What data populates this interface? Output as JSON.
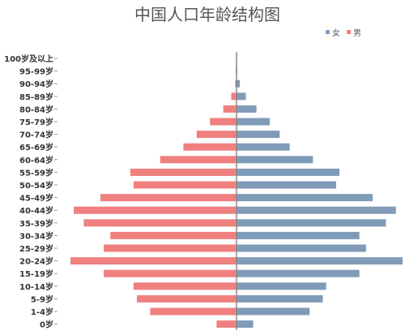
{
  "chart_data": {
    "type": "bar",
    "orientation": "horizontal-population-pyramid",
    "title": "中国人口年龄结构图",
    "legend": {
      "placement": "top-right"
    },
    "categories": [
      "100岁及以上",
      "95-99岁",
      "90-94岁",
      "85-89岁",
      "80-84岁",
      "75-79岁",
      "70-74岁",
      "65-69岁",
      "60-64岁",
      "55-59岁",
      "50-54岁",
      "45-49岁",
      "40-44岁",
      "35-39岁",
      "30-34岁",
      "25-29岁",
      "20-24岁",
      "15-19岁",
      "10-14岁",
      "5-9岁",
      "1-4岁",
      "0岁"
    ],
    "series": [
      {
        "name": "女",
        "color": "#7f9bb8",
        "side": "right",
        "values": [
          0,
          0.1,
          0.5,
          1.4,
          3.0,
          5.0,
          6.5,
          8.0,
          11.5,
          15.5,
          15.0,
          20.5,
          24.0,
          22.5,
          18.5,
          19.5,
          25.0,
          18.5,
          13.5,
          13.0,
          11.0,
          2.5
        ]
      },
      {
        "name": "男",
        "color": "#f08080",
        "side": "left",
        "values": [
          0,
          0.1,
          0.2,
          0.8,
          2.0,
          4.0,
          6.0,
          8.0,
          11.5,
          16.0,
          15.5,
          20.5,
          24.5,
          23.0,
          19.0,
          20.0,
          25.0,
          20.0,
          15.5,
          15.0,
          13.0,
          3.0
        ]
      }
    ],
    "xlim": [
      -25,
      25
    ],
    "grid": false
  }
}
